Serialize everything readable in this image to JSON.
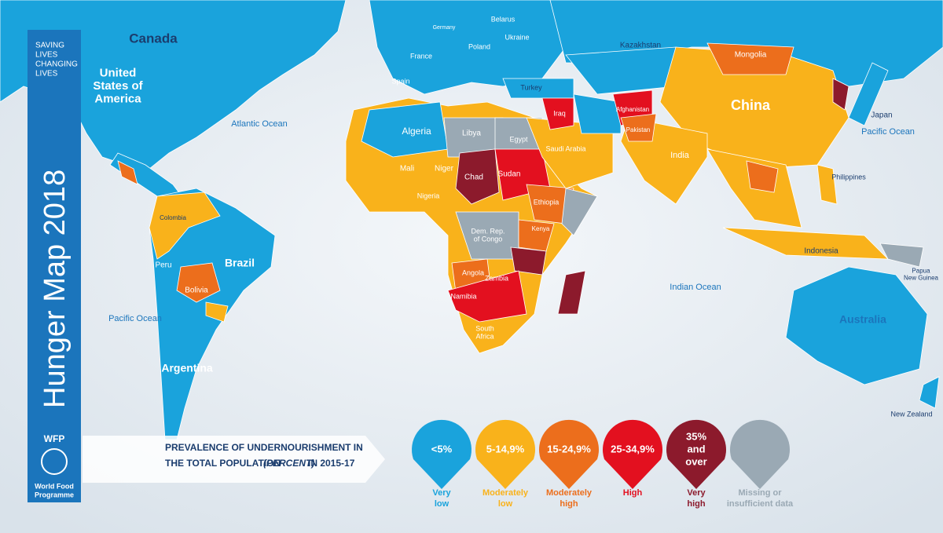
{
  "sidebar": {
    "tagline": [
      "SAVING",
      "LIVES",
      "CHANGING",
      "LIVES"
    ],
    "title": "Hunger Map 2018",
    "logo": "WFP",
    "org": [
      "World Food",
      "Programme"
    ]
  },
  "legend": {
    "title": [
      "PREVALENCE OF UNDERNOURISHMENT IN",
      "THE TOTAL POPULATION",
      "(PERCENT)",
      "IN 2015-17"
    ],
    "classes": [
      {
        "range": [
          "<5%"
        ],
        "label": [
          "Very",
          "low"
        ],
        "color": "#1aa3dc"
      },
      {
        "range": [
          "5-14,9%"
        ],
        "label": [
          "Moderately",
          "low"
        ],
        "color": "#f9b21b"
      },
      {
        "range": [
          "15-24,9%"
        ],
        "label": [
          "Moderately",
          "high"
        ],
        "color": "#ec6e1c"
      },
      {
        "range": [
          "25-34,9%"
        ],
        "label": [
          "High"
        ],
        "color": "#e3101f"
      },
      {
        "range": [
          "35%",
          "and",
          "over"
        ],
        "label": [
          "Very",
          "high"
        ],
        "color": "#8c1a2c"
      },
      {
        "range": [],
        "label": [
          "Missing or",
          "insufficient data"
        ],
        "color": "#9aa9b4"
      }
    ]
  },
  "map": {
    "labels": [
      [
        "Canada"
      ],
      [
        "United",
        "States of",
        "America"
      ],
      [
        "Atlantic Ocean"
      ],
      [
        "Pacific Ocean"
      ],
      [
        "Pacific Ocean"
      ],
      [
        "Indian Ocean"
      ],
      [
        "Brazil"
      ],
      [
        "Argentina"
      ],
      [
        "Peru"
      ],
      [
        "Bolivia"
      ],
      [
        "Colombia"
      ],
      [
        "Algeria"
      ],
      [
        "Libya"
      ],
      [
        "Egypt"
      ],
      [
        "Mali"
      ],
      [
        "Niger"
      ],
      [
        "Chad"
      ],
      [
        "Sudan"
      ],
      [
        "Ethiopia"
      ],
      [
        "Kenya"
      ],
      [
        "Angola"
      ],
      [
        "Namibia"
      ],
      [
        "Zambia"
      ],
      [
        "Nigeria"
      ],
      [
        "Dem. Rep.",
        "of Congo"
      ],
      [
        "South",
        "Africa"
      ],
      [
        "Kazakhstan"
      ],
      [
        "Mongolia"
      ],
      [
        "China"
      ],
      [
        "India"
      ],
      [
        "Iraq"
      ],
      [
        "Afghanistan"
      ],
      [
        "Pakistan"
      ],
      [
        "Turkey"
      ],
      [
        "Saudi Arabia"
      ],
      [
        "Japan"
      ],
      [
        "Indonesia"
      ],
      [
        "Australia"
      ],
      [
        "New Zealand"
      ],
      [
        "Philippines"
      ],
      [
        "Papua",
        "New Guinea"
      ],
      [
        "France"
      ],
      [
        "Spain"
      ],
      [
        "Germany"
      ],
      [
        "Poland"
      ],
      [
        "Ukraine"
      ],
      [
        "Belarus"
      ]
    ]
  }
}
